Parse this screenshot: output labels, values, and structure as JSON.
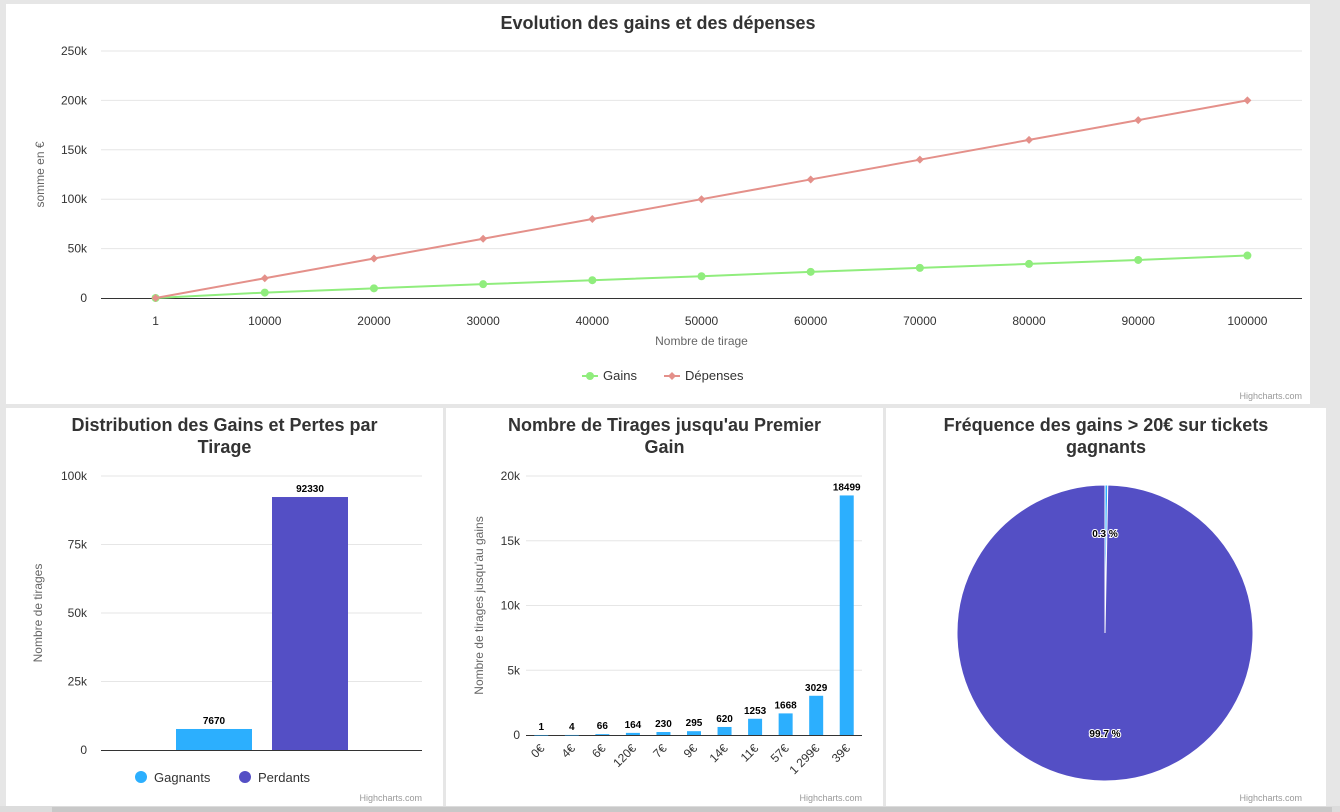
{
  "chart_data": [
    {
      "type": "line",
      "title": "Evolution des gains et des dépenses",
      "xlabel": "Nombre de tirage",
      "ylabel": "somme en €",
      "categories": [
        "1",
        "10000",
        "20000",
        "30000",
        "40000",
        "50000",
        "60000",
        "70000",
        "80000",
        "90000",
        "100000"
      ],
      "ylim": [
        0,
        250000
      ],
      "yticks": [
        {
          "value": 0,
          "label": "0"
        },
        {
          "value": 50000,
          "label": "50k"
        },
        {
          "value": 100000,
          "label": "100k"
        },
        {
          "value": 150000,
          "label": "150k"
        },
        {
          "value": 200000,
          "label": "200k"
        },
        {
          "value": 250000,
          "label": "250k"
        }
      ],
      "series": [
        {
          "name": "Gains",
          "color": "#90ed7d",
          "marker": "circle",
          "values": [
            0,
            5500,
            9800,
            14000,
            18000,
            22000,
            26500,
            30500,
            34500,
            38500,
            43000
          ]
        },
        {
          "name": "Dépenses",
          "color": "#e4908a",
          "marker": "diamond",
          "values": [
            0,
            20000,
            40000,
            60000,
            80000,
            100000,
            120000,
            140000,
            160000,
            180000,
            200000
          ]
        }
      ],
      "legend": "bottom-center",
      "grid": true,
      "credit": "Highcharts.com"
    },
    {
      "type": "bar",
      "title": [
        "Distribution des Gains et Pertes par",
        "Tirage"
      ],
      "xlabel": "",
      "ylabel": "Nombre de tirages",
      "ylim": [
        0,
        100000
      ],
      "yticks": [
        {
          "value": 0,
          "label": "0"
        },
        {
          "value": 25000,
          "label": "25k"
        },
        {
          "value": 50000,
          "label": "50k"
        },
        {
          "value": 75000,
          "label": "75k"
        },
        {
          "value": 100000,
          "label": "100k"
        }
      ],
      "series": [
        {
          "name": "Gagnants",
          "color": "#2caffe",
          "values": [
            7670
          ],
          "labels": [
            "7670"
          ]
        },
        {
          "name": "Perdants",
          "color": "#544fc5",
          "values": [
            92330
          ],
          "labels": [
            "92330"
          ]
        }
      ],
      "legend": "bottom-center",
      "credit": "Highcharts.com"
    },
    {
      "type": "bar",
      "title": [
        "Nombre de Tirages jusqu'au Premier",
        "Gain"
      ],
      "xlabel": "",
      "ylabel": "Nombre de tirages jusqu'au gains",
      "ylim": [
        0,
        20000
      ],
      "yticks": [
        {
          "value": 0,
          "label": "0"
        },
        {
          "value": 5000,
          "label": "5k"
        },
        {
          "value": 10000,
          "label": "10k"
        },
        {
          "value": 15000,
          "label": "15k"
        },
        {
          "value": 20000,
          "label": "20k"
        }
      ],
      "categories": [
        "0€",
        "4€",
        "6€",
        "120€",
        "7€",
        "9€",
        "14€",
        "11€",
        "57€",
        "1 299€",
        "39€"
      ],
      "values": [
        1,
        4,
        66,
        164,
        230,
        295,
        620,
        1253,
        1668,
        3029,
        18499
      ],
      "labels": [
        "1",
        "4",
        "66",
        "164",
        "230",
        "295",
        "620",
        "1253",
        "1668",
        "3029",
        "18499"
      ],
      "color": "#2caffe",
      "credit": "Highcharts.com"
    },
    {
      "type": "pie",
      "title": [
        "Fréquence des gains > 20€ sur tickets",
        "gagnants"
      ],
      "slices": [
        {
          "value": 0.3,
          "label": "0.3 %",
          "color": "#2caffe"
        },
        {
          "value": 99.7,
          "label": "99.7 %",
          "color": "#544fc5"
        }
      ],
      "credit": "Highcharts.com"
    }
  ]
}
